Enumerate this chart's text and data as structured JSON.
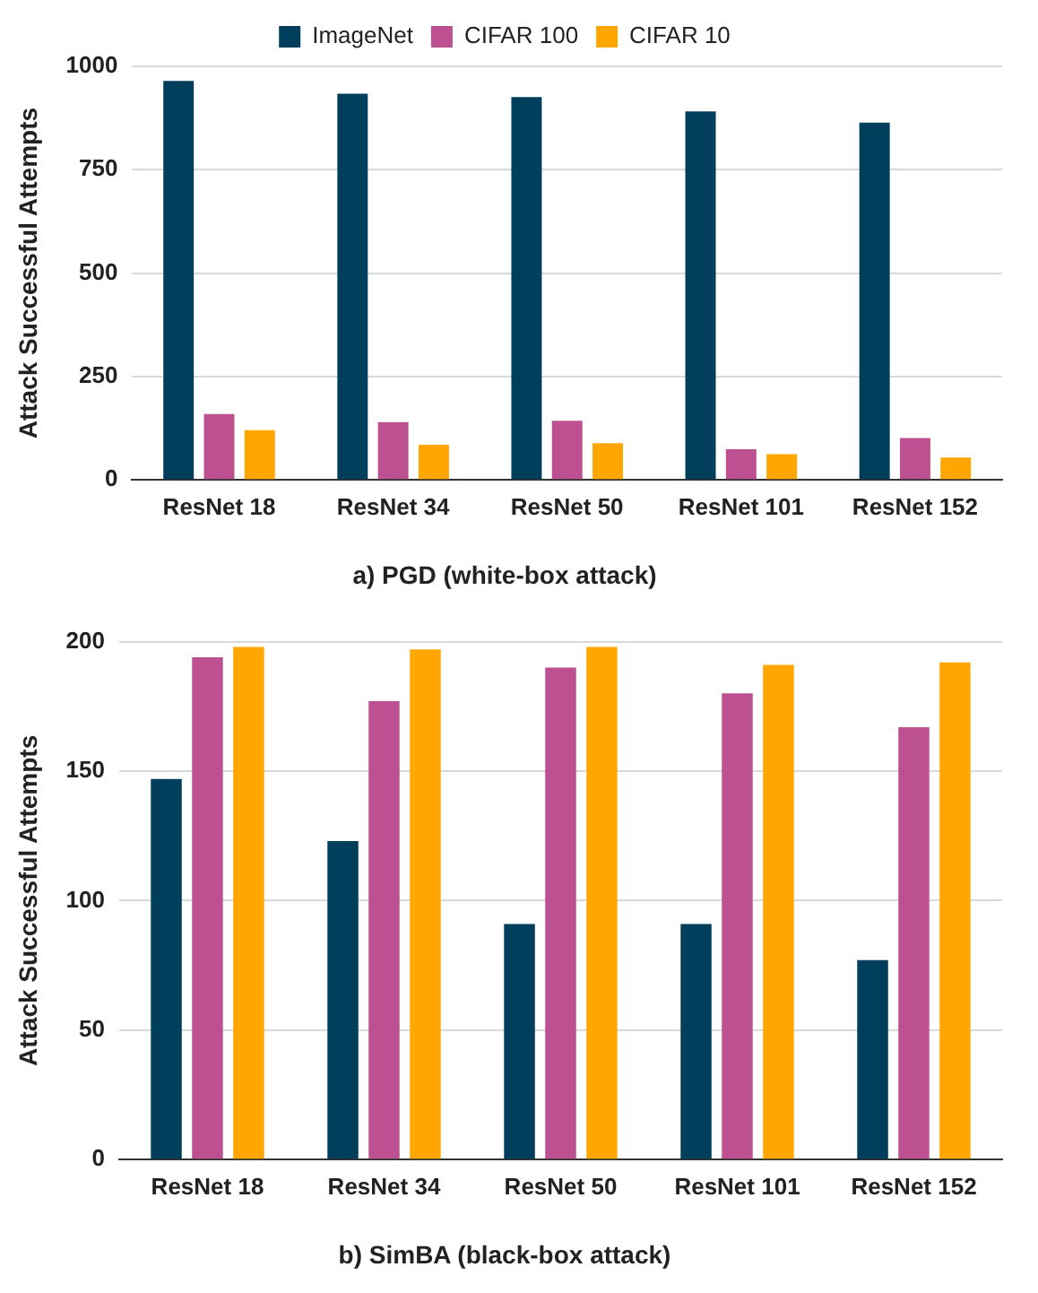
{
  "chart_data": [
    {
      "type": "bar",
      "title": "a) PGD (white-box attack)",
      "ylabel": "Attack Successful Attempts",
      "categories": [
        "ResNet 18",
        "ResNet 34",
        "ResNet 50",
        "ResNet 101",
        "ResNet 152"
      ],
      "series": [
        {
          "name": "ImageNet",
          "color": "#003f5c",
          "values": [
            965,
            934,
            926,
            891,
            864
          ]
        },
        {
          "name": "CIFAR 100",
          "color": "#bc5090",
          "values": [
            159,
            140,
            143,
            74,
            101
          ]
        },
        {
          "name": "CIFAR 10",
          "color": "#ffa600",
          "values": [
            120,
            85,
            89,
            62,
            54
          ]
        }
      ],
      "ylim": [
        0,
        1000
      ],
      "yticks": [
        0,
        250,
        500,
        750,
        1000
      ],
      "grid": "y",
      "legend": "top"
    },
    {
      "type": "bar",
      "title": "b) SimBA (black-box attack)",
      "ylabel": "Attack Successful Attempts",
      "categories": [
        "ResNet 18",
        "ResNet 34",
        "ResNet 50",
        "ResNet 101",
        "ResNet 152"
      ],
      "series": [
        {
          "color": "#003f5c",
          "values": [
            147,
            123,
            91,
            91,
            77
          ]
        },
        {
          "color": "#bc5090",
          "values": [
            194,
            177,
            190,
            180,
            167
          ]
        },
        {
          "color": "#ffa600",
          "values": [
            198,
            197,
            198,
            191,
            192
          ]
        }
      ],
      "ylim": [
        0,
        200
      ],
      "yticks": [
        0,
        50,
        100,
        150,
        200
      ],
      "grid": "y"
    }
  ]
}
